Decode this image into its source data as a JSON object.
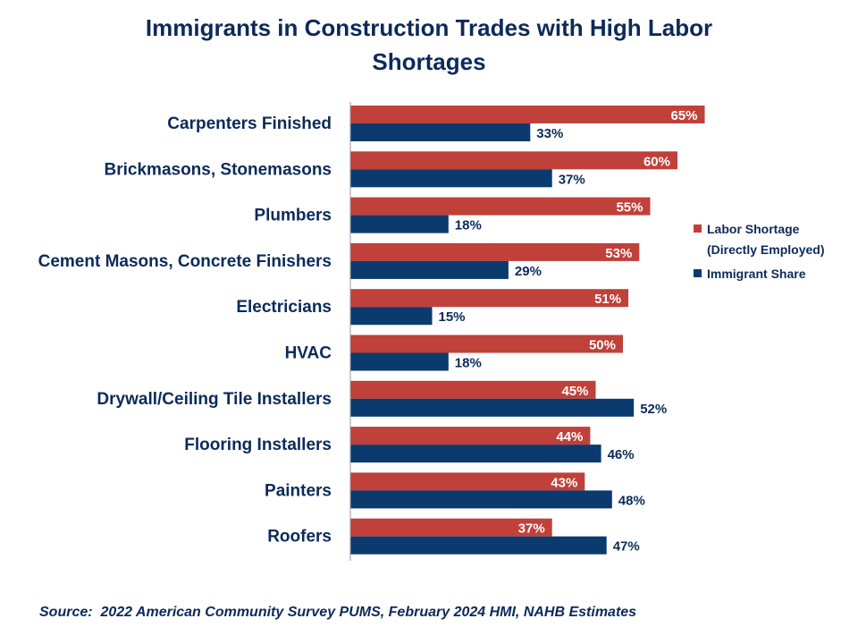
{
  "title_line1": "Immigrants in Construction Trades with High Labor",
  "title_line2": "Shortages",
  "source": "Source:  2022 American Community Survey PUMS, February 2024 HMI, NAHB Estimates",
  "colors": {
    "labor_shortage": "#c0403a",
    "immigrant_share": "#0b3a6e",
    "text": "#0b2a5a",
    "axis": "#999999"
  },
  "chart_data": {
    "type": "bar",
    "orientation": "horizontal",
    "title": "Immigrants in Construction Trades with High Labor Shortages",
    "categories": [
      "Carpenters Finished",
      "Brickmasons, Stonemasons",
      "Plumbers",
      "Cement Masons, Concrete Finishers",
      "Electricians",
      "HVAC",
      "Drywall/Ceiling Tile Installers",
      "Flooring Installers",
      "Painters",
      "Roofers"
    ],
    "series": [
      {
        "name": "Labor Shortage (Directly Employed)",
        "legend_line1": "Labor Shortage",
        "legend_line2": "(Directly Employed)",
        "color": "#c0403a",
        "values": [
          65,
          60,
          55,
          53,
          51,
          50,
          45,
          44,
          43,
          37
        ],
        "labels": [
          "65%",
          "60%",
          "55%",
          "53%",
          "51%",
          "50%",
          "45%",
          "44%",
          "43%",
          "37%"
        ]
      },
      {
        "name": "Immigrant Share",
        "legend_line1": "Immigrant Share",
        "legend_line2": "",
        "color": "#0b3a6e",
        "values": [
          33,
          37,
          18,
          29,
          15,
          18,
          52,
          46,
          48,
          47
        ],
        "labels": [
          "33%",
          "37%",
          "18%",
          "29%",
          "15%",
          "18%",
          "52%",
          "46%",
          "48%",
          "47%"
        ]
      }
    ],
    "xlim": [
      0,
      70
    ],
    "unit": "%",
    "legend_position": "right",
    "grid": false
  }
}
